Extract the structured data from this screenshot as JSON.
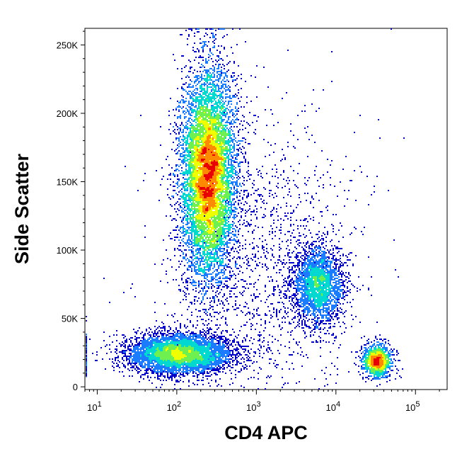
{
  "chart_data": {
    "type": "scatter",
    "title": "",
    "xlabel": "CD4 APC",
    "ylabel": "Side Scatter",
    "x_scale": "log",
    "y_scale": "linear",
    "xlim": [
      7,
      250000
    ],
    "ylim": [
      -2000,
      262144
    ],
    "grid": false,
    "legend": "none",
    "density_colormap": [
      "#0000c8",
      "#1c7cff",
      "#00d8d0",
      "#6ef050",
      "#f0ff00",
      "#ff8a00",
      "#e80000"
    ],
    "x_ticks": [
      {
        "value": 10,
        "base": "10",
        "exp": "1"
      },
      {
        "value": 100,
        "base": "10",
        "exp": "2"
      },
      {
        "value": 1000,
        "base": "10",
        "exp": "3"
      },
      {
        "value": 10000,
        "base": "10",
        "exp": "4"
      },
      {
        "value": 100000,
        "base": "10",
        "exp": "5"
      }
    ],
    "y_ticks": [
      {
        "value": 0,
        "label": "0"
      },
      {
        "value": 50000,
        "label": "50K"
      },
      {
        "value": 100000,
        "label": "100K"
      },
      {
        "value": 150000,
        "label": "150K"
      },
      {
        "value": 200000,
        "label": "200K"
      },
      {
        "value": 250000,
        "label": "250K"
      }
    ],
    "populations": [
      {
        "center_x": 250,
        "center_y": 155000,
        "sd_log10_x": 0.17,
        "sd_y": 38000,
        "count": 9000,
        "peak": "red"
      },
      {
        "center_x": 110,
        "center_y": 24000,
        "sd_log10_x": 0.32,
        "sd_y": 7000,
        "count": 6000,
        "peak": "yellow"
      },
      {
        "center_x": 6000,
        "center_y": 74000,
        "sd_log10_x": 0.16,
        "sd_y": 14000,
        "count": 2600,
        "peak": "green"
      },
      {
        "center_x": 33000,
        "center_y": 19000,
        "sd_log10_x": 0.09,
        "sd_y": 6000,
        "count": 1300,
        "peak": "red"
      },
      {
        "center_x": 1200,
        "center_y": 90000,
        "sd_log10_x": 0.6,
        "sd_y": 55000,
        "count": 1500,
        "peak": "blue"
      }
    ]
  }
}
